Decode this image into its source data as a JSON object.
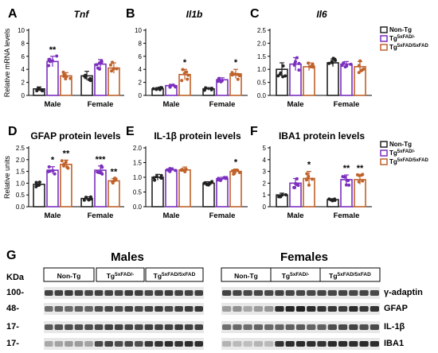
{
  "colors": {
    "nontg": "#222222",
    "het": "#7b2fbe",
    "hom": "#c0622b",
    "bar_edge_black": "#000000"
  },
  "chart_data": [
    {
      "type": "bar",
      "panel": "A",
      "title": "Tnf",
      "title_italic": true,
      "ylabel": "Relative mRNA levels",
      "ylim": [
        0,
        10
      ],
      "yticks": [
        0,
        2,
        4,
        6,
        8,
        10
      ],
      "categories": [
        "Male",
        "Female"
      ],
      "series": [
        {
          "name": "Non-Tg",
          "values": [
            1.0,
            3.0
          ],
          "err": [
            0.3,
            0.7
          ]
        },
        {
          "name": "Tg5xFAD/-",
          "values": [
            5.2,
            4.8
          ],
          "err": [
            0.8,
            0.7
          ]
        },
        {
          "name": "Tg5xFAD/5xFAD",
          "values": [
            3.0,
            4.2
          ],
          "err": [
            0.5,
            0.8
          ]
        }
      ],
      "significance": [
        {
          "cat": 0,
          "series": 1,
          "label": "**"
        }
      ],
      "legend": "none"
    },
    {
      "type": "bar",
      "panel": "B",
      "title": "Il1b",
      "title_italic": true,
      "ylabel": "",
      "ylim": [
        0,
        10
      ],
      "yticks": [
        0,
        2,
        4,
        6,
        8,
        10
      ],
      "categories": [
        "Male",
        "Female"
      ],
      "series": [
        {
          "name": "Non-Tg",
          "values": [
            1.0,
            1.0
          ],
          "err": [
            0.2,
            0.2
          ]
        },
        {
          "name": "Tg5xFAD/-",
          "values": [
            1.5,
            2.4
          ],
          "err": [
            0.2,
            0.3
          ]
        },
        {
          "name": "Tg5xFAD/5xFAD",
          "values": [
            3.2,
            3.3
          ],
          "err": [
            0.8,
            0.7
          ]
        }
      ],
      "significance": [
        {
          "cat": 0,
          "series": 2,
          "label": "*"
        },
        {
          "cat": 1,
          "series": 2,
          "label": "*"
        }
      ],
      "legend": "none"
    },
    {
      "type": "bar",
      "panel": "C",
      "title": "Il6",
      "title_italic": true,
      "ylabel": "",
      "ylim": [
        0,
        2.5
      ],
      "yticks": [
        0.0,
        0.5,
        1.0,
        1.5,
        2.0,
        2.5
      ],
      "ytick_labels": [
        "0.0",
        "0.5",
        "1.0",
        "1.5",
        "2.0",
        "2.5"
      ],
      "categories": [
        "Male",
        "Female"
      ],
      "series": [
        {
          "name": "Non-Tg",
          "values": [
            1.0,
            1.25
          ],
          "err": [
            0.25,
            0.15
          ]
        },
        {
          "name": "Tg5xFAD/-",
          "values": [
            1.2,
            1.2
          ],
          "err": [
            0.25,
            0.1
          ]
        },
        {
          "name": "Tg5xFAD/5xFAD",
          "values": [
            1.1,
            1.1
          ],
          "err": [
            0.15,
            0.2
          ]
        }
      ],
      "significance": [],
      "legend": "right"
    },
    {
      "type": "bar",
      "panel": "D",
      "title": "GFAP protein levels",
      "title_italic": false,
      "ylabel": "Relative units",
      "ylim": [
        0,
        2.5
      ],
      "yticks": [
        0.0,
        0.5,
        1.0,
        1.5,
        2.0,
        2.5
      ],
      "ytick_labels": [
        "0.0",
        "0.5",
        "1.0",
        "1.5",
        "2.0",
        "2.5"
      ],
      "categories": [
        "Male",
        "Female"
      ],
      "series": [
        {
          "name": "Non-Tg",
          "values": [
            0.95,
            0.35
          ],
          "err": [
            0.1,
            0.07
          ]
        },
        {
          "name": "Tg5xFAD/-",
          "values": [
            1.55,
            1.55
          ],
          "err": [
            0.15,
            0.18
          ]
        },
        {
          "name": "Tg5xFAD/5xFAD",
          "values": [
            1.8,
            1.1
          ],
          "err": [
            0.18,
            0.1
          ]
        }
      ],
      "significance": [
        {
          "cat": 0,
          "series": 1,
          "label": "*"
        },
        {
          "cat": 0,
          "series": 2,
          "label": "**"
        },
        {
          "cat": 1,
          "series": 1,
          "label": "***"
        },
        {
          "cat": 1,
          "series": 2,
          "label": "**"
        }
      ],
      "legend": "none"
    },
    {
      "type": "bar",
      "panel": "E",
      "title": "IL-1β protein levels",
      "title_italic": false,
      "ylabel": "",
      "ylim": [
        0,
        2.0
      ],
      "yticks": [
        0.0,
        0.5,
        1.0,
        1.5,
        2.0
      ],
      "ytick_labels": [
        "0.0",
        "0.5",
        "1.0",
        "1.5",
        "2.0"
      ],
      "categories": [
        "Male",
        "Female"
      ],
      "series": [
        {
          "name": "Non-Tg",
          "values": [
            1.0,
            0.8
          ],
          "err": [
            0.1,
            0.05
          ]
        },
        {
          "name": "Tg5xFAD/-",
          "values": [
            1.25,
            0.95
          ],
          "err": [
            0.05,
            0.05
          ]
        },
        {
          "name": "Tg5xFAD/5xFAD",
          "values": [
            1.25,
            1.2
          ],
          "err": [
            0.1,
            0.08
          ]
        }
      ],
      "significance": [
        {
          "cat": 1,
          "series": 2,
          "label": "*"
        }
      ],
      "legend": "none"
    },
    {
      "type": "bar",
      "panel": "F",
      "title": "IBA1 protein levels",
      "title_italic": false,
      "ylabel": "",
      "ylim": [
        0,
        5
      ],
      "yticks": [
        0,
        1,
        2,
        3,
        4,
        5
      ],
      "categories": [
        "Male",
        "Female"
      ],
      "series": [
        {
          "name": "Non-Tg",
          "values": [
            1.0,
            0.6
          ],
          "err": [
            0.15,
            0.08
          ]
        },
        {
          "name": "Tg5xFAD/-",
          "values": [
            2.0,
            2.3
          ],
          "err": [
            0.4,
            0.4
          ]
        },
        {
          "name": "Tg5xFAD/5xFAD",
          "values": [
            2.4,
            2.3
          ],
          "err": [
            0.6,
            0.4
          ]
        }
      ],
      "significance": [
        {
          "cat": 0,
          "series": 2,
          "label": "*"
        },
        {
          "cat": 1,
          "series": 1,
          "label": "**"
        },
        {
          "cat": 1,
          "series": 2,
          "label": "**"
        }
      ],
      "legend": "right"
    }
  ],
  "legend": {
    "items": [
      {
        "label": "Non-Tg",
        "sup": ""
      },
      {
        "label": "Tg",
        "sup": "5xFAD/-"
      },
      {
        "label": "Tg",
        "sup": "5xFAD/5xFAD"
      }
    ]
  },
  "western": {
    "panel_label": "G",
    "kda_label": "KDa",
    "group_headers": [
      {
        "label": "Males"
      },
      {
        "label": "Females"
      }
    ],
    "lane_groups": [
      {
        "label": "Non-Tg",
        "sup": ""
      },
      {
        "label": "Tg",
        "sup": "5xFAD/-"
      },
      {
        "label": "Tg",
        "sup": "5xFAD/5xFAD"
      },
      {
        "label": "Non-Tg",
        "sup": ""
      },
      {
        "label": "Tg",
        "sup": "5xFAD/-"
      },
      {
        "label": "Tg",
        "sup": "5xFAD/5xFAD"
      }
    ],
    "rows": [
      {
        "kda": "100-",
        "protein": "γ-adaptin",
        "intensity": [
          0.75,
          0.75,
          0.78,
          0.75,
          0.74,
          0.76,
          0.75,
          0.74,
          0.78,
          0.77,
          0.73,
          0.76,
          0.78,
          0.75,
          0.75,
          0.76,
          0.75,
          0.74,
          0.72,
          0.73,
          0.72,
          0.75,
          0.74,
          0.73,
          0.72,
          0.74,
          0.73,
          0.74,
          0.72,
          0.74,
          0.72
        ]
      },
      {
        "kda": "48-",
        "protein": "GFAP",
        "intensity": [
          0.55,
          0.6,
          0.58,
          0.62,
          0.6,
          0.7,
          0.72,
          0.7,
          0.75,
          0.72,
          0.75,
          0.78,
          0.72,
          0.76,
          0.78,
          0.8,
          0.35,
          0.4,
          0.3,
          0.35,
          0.38,
          0.85,
          0.88,
          0.9,
          0.85,
          0.82,
          0.8,
          0.78,
          0.85,
          0.8,
          0.82
        ]
      },
      {
        "kda": "17-",
        "protein": "IL-1β",
        "intensity": [
          0.65,
          0.68,
          0.7,
          0.7,
          0.7,
          0.72,
          0.75,
          0.75,
          0.74,
          0.72,
          0.76,
          0.75,
          0.75,
          0.78,
          0.75,
          0.76,
          0.55,
          0.58,
          0.55,
          0.6,
          0.58,
          0.6,
          0.62,
          0.64,
          0.6,
          0.62,
          0.7,
          0.72,
          0.75,
          0.7,
          0.72
        ]
      },
      {
        "kda": "17-",
        "protein": "IBA1",
        "intensity": [
          0.3,
          0.32,
          0.35,
          0.35,
          0.32,
          0.72,
          0.75,
          0.7,
          0.74,
          0.7,
          0.8,
          0.82,
          0.85,
          0.82,
          0.85,
          0.84,
          0.25,
          0.22,
          0.2,
          0.24,
          0.22,
          0.82,
          0.85,
          0.86,
          0.84,
          0.82,
          0.86,
          0.85,
          0.84,
          0.86,
          0.85
        ]
      }
    ]
  }
}
